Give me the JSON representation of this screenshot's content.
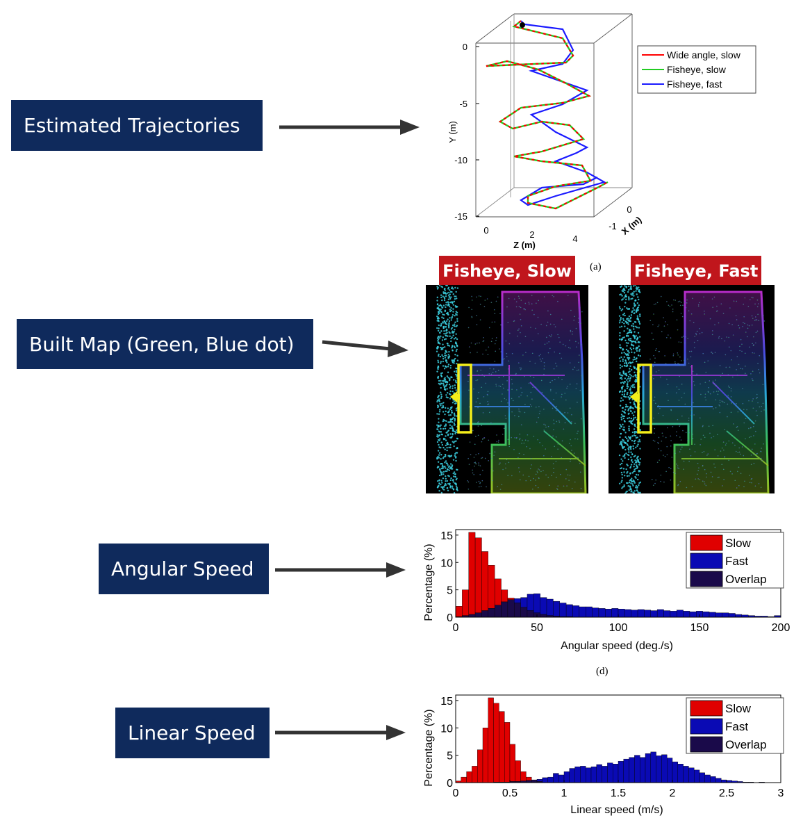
{
  "labels": {
    "trajectories": "Estimated Trajectories",
    "built_map": "Built Map (Green, Blue dot)",
    "angular": "Angular Speed",
    "linear": "Linear Speed"
  },
  "maps": {
    "slow_title": "Fisheye, Slow",
    "fast_title": "Fisheye, Fast"
  },
  "captions": {
    "a": "(a)",
    "d": "(d)"
  },
  "colors": {
    "label_bg": "#0f2a5c",
    "map_title_bg": "#c0161c",
    "slow": "#e00000",
    "fast": "#0a0ab4",
    "overlap": "#1a0a4a",
    "wide_angle": "#ff0000",
    "fisheye_slow": "#22cc22",
    "fisheye_fast": "#1a1aff"
  },
  "chart_data": [
    {
      "type": "line",
      "title": "",
      "xlabel": "X (m)",
      "ylabel": "Y (m)",
      "zlabel": "Z (m)",
      "y_ticks": [
        "0",
        "-5",
        "-10",
        "-15"
      ],
      "z_ticks": [
        "0",
        "2",
        "4"
      ],
      "x_ticks": [
        "0",
        "-1"
      ],
      "ylim": [
        -15,
        0
      ],
      "legend": [
        "Wide angle, slow",
        "Fisheye, slow",
        "Fisheye, fast"
      ],
      "legend_position": "right"
    },
    {
      "type": "bar",
      "xlabel": "Angular speed (deg./s)",
      "ylabel": "Percentage (%)",
      "xlim": [
        0,
        200
      ],
      "ylim": [
        0,
        16
      ],
      "x_ticks": [
        "0",
        "50",
        "100",
        "150",
        "200"
      ],
      "y_ticks": [
        "0",
        "5",
        "10",
        "15"
      ],
      "bin_width": 4,
      "legend": [
        "Slow",
        "Fast",
        "Overlap"
      ],
      "legend_position": "top-right",
      "series": [
        {
          "name": "Slow",
          "values": [
            2,
            5,
            15.5,
            14.5,
            12,
            9.5,
            7,
            5,
            3.5,
            2.6,
            1.8,
            1.2,
            0.8,
            0.5,
            0.3,
            0.2,
            0.1,
            0.1,
            0,
            0,
            0,
            0,
            0,
            0,
            0,
            0,
            0,
            0,
            0,
            0,
            0,
            0,
            0,
            0,
            0,
            0,
            0,
            0,
            0,
            0,
            0,
            0,
            0,
            0,
            0,
            0,
            0,
            0,
            0,
            0
          ]
        },
        {
          "name": "Fast",
          "values": [
            0.1,
            0.3,
            0.5,
            0.8,
            1.2,
            1.6,
            2.2,
            2.8,
            3.2,
            3.4,
            3.6,
            4.2,
            4.3,
            3.6,
            3.3,
            2.9,
            2.6,
            2.3,
            2.1,
            1.9,
            1.9,
            1.7,
            1.6,
            1.5,
            1.6,
            1.5,
            1.4,
            1.3,
            1.4,
            1.3,
            1.2,
            1.4,
            1.2,
            1.1,
            1.3,
            1.1,
            1.0,
            1.1,
            1.0,
            0.9,
            0.8,
            0.8,
            0.7,
            0.5,
            0.4,
            0.3,
            0.2,
            0.2,
            0.1,
            0.3
          ]
        }
      ]
    },
    {
      "type": "bar",
      "xlabel": "Linear speed (m/s)",
      "ylabel": "Percentage (%)",
      "xlim": [
        0,
        3
      ],
      "ylim": [
        0,
        16
      ],
      "x_ticks": [
        "0",
        "0.5",
        "1",
        "1.5",
        "2",
        "2.5",
        "3"
      ],
      "y_ticks": [
        "0",
        "5",
        "10",
        "15"
      ],
      "bin_width": 0.05,
      "legend": [
        "Slow",
        "Fast",
        "Overlap"
      ],
      "legend_position": "top-right",
      "series": [
        {
          "name": "Slow",
          "values": [
            0.3,
            1.0,
            2.0,
            3.0,
            6.0,
            10.0,
            15.5,
            14.5,
            13.0,
            11.0,
            7.0,
            4.0,
            2.0,
            1.0,
            0.5,
            0.2,
            0,
            0,
            0,
            0,
            0,
            0,
            0,
            0,
            0,
            0,
            0,
            0,
            0,
            0,
            0,
            0,
            0,
            0,
            0,
            0,
            0,
            0,
            0,
            0,
            0,
            0,
            0,
            0,
            0,
            0,
            0,
            0,
            0,
            0,
            0,
            0,
            0,
            0,
            0,
            0,
            0,
            0,
            0,
            0
          ]
        },
        {
          "name": "Fast",
          "values": [
            0,
            0,
            0,
            0,
            0,
            0,
            0,
            0.1,
            0.1,
            0.1,
            0.2,
            0.2,
            0.3,
            0.4,
            0.5,
            0.6,
            0.9,
            1.0,
            1.7,
            1.4,
            2.0,
            2.6,
            2.9,
            3.0,
            2.7,
            2.9,
            3.3,
            3.0,
            3.6,
            3.4,
            3.9,
            4.3,
            4.6,
            5.0,
            4.6,
            5.3,
            5.6,
            4.9,
            5.1,
            4.5,
            3.8,
            3.4,
            3.0,
            2.7,
            2.3,
            1.8,
            1.4,
            1.1,
            0.8,
            0.5,
            0.4,
            0.3,
            0.2,
            0.1,
            0.1,
            0,
            0.1,
            0,
            0,
            0
          ]
        }
      ]
    }
  ]
}
